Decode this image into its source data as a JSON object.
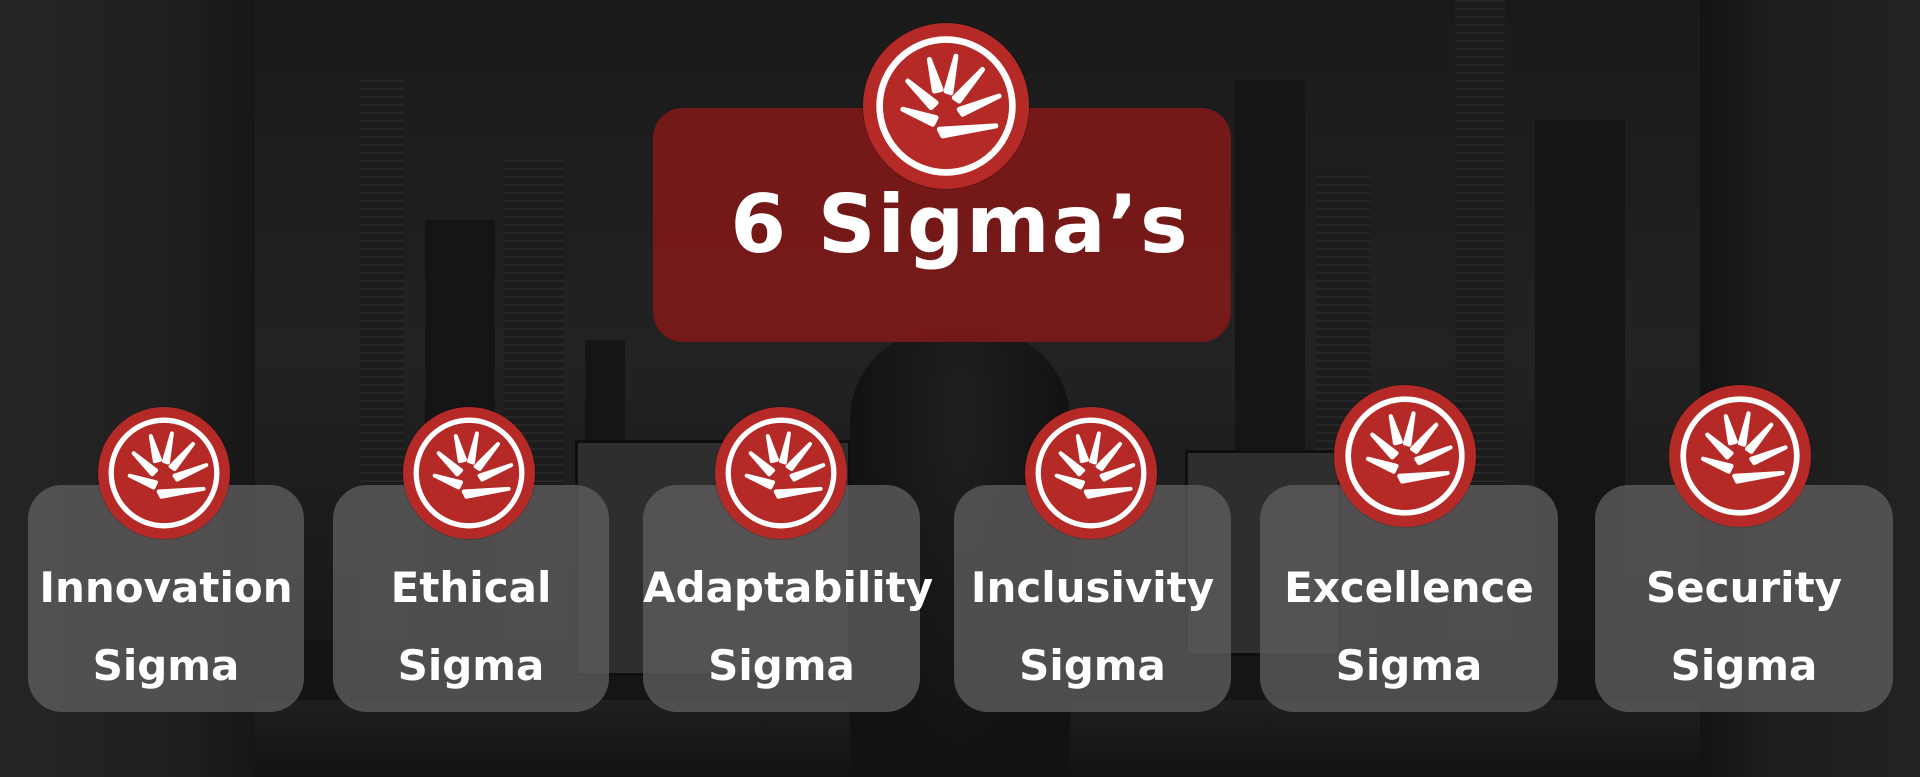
{
  "title": "6 Sigma’s",
  "logo_icon": "red-fan-circle-logo",
  "colors": {
    "banner": "#821818",
    "logo": "#b52a26",
    "card": "#5f5c5c",
    "text": "#ffffff"
  },
  "sigmas": [
    {
      "line1": "Innovation",
      "line2": "Sigma"
    },
    {
      "line1": "Ethical",
      "line2": "Sigma"
    },
    {
      "line1": "Adaptability",
      "line2": "Sigma"
    },
    {
      "line1": "Inclusivity",
      "line2": "Sigma"
    },
    {
      "line1": "Excellence",
      "line2": "Sigma"
    },
    {
      "line1": "Security",
      "line2": "Sigma"
    }
  ]
}
